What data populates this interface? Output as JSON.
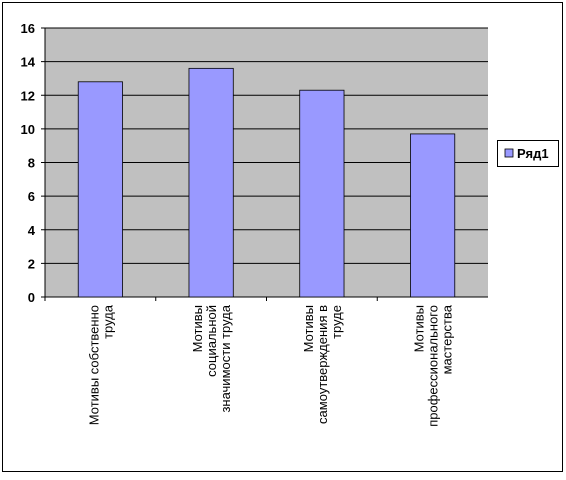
{
  "chart_data": {
    "type": "bar",
    "categories": [
      "Мотивы собственно\nтруда",
      "Мотивы\nсоциальной\nзначимости труда",
      "Мотивы\nсамоутверждения в\nтруде",
      "Мотивы\nпрофессионального\nмастерства"
    ],
    "series": [
      {
        "name": "Ряд1",
        "color": "#9999ff",
        "values": [
          12.8,
          13.6,
          12.3,
          9.7
        ]
      }
    ],
    "ylim": [
      0,
      16
    ],
    "yticks": [
      0,
      2,
      4,
      6,
      8,
      10,
      12,
      14,
      16
    ],
    "grid": true,
    "legend": "right"
  }
}
